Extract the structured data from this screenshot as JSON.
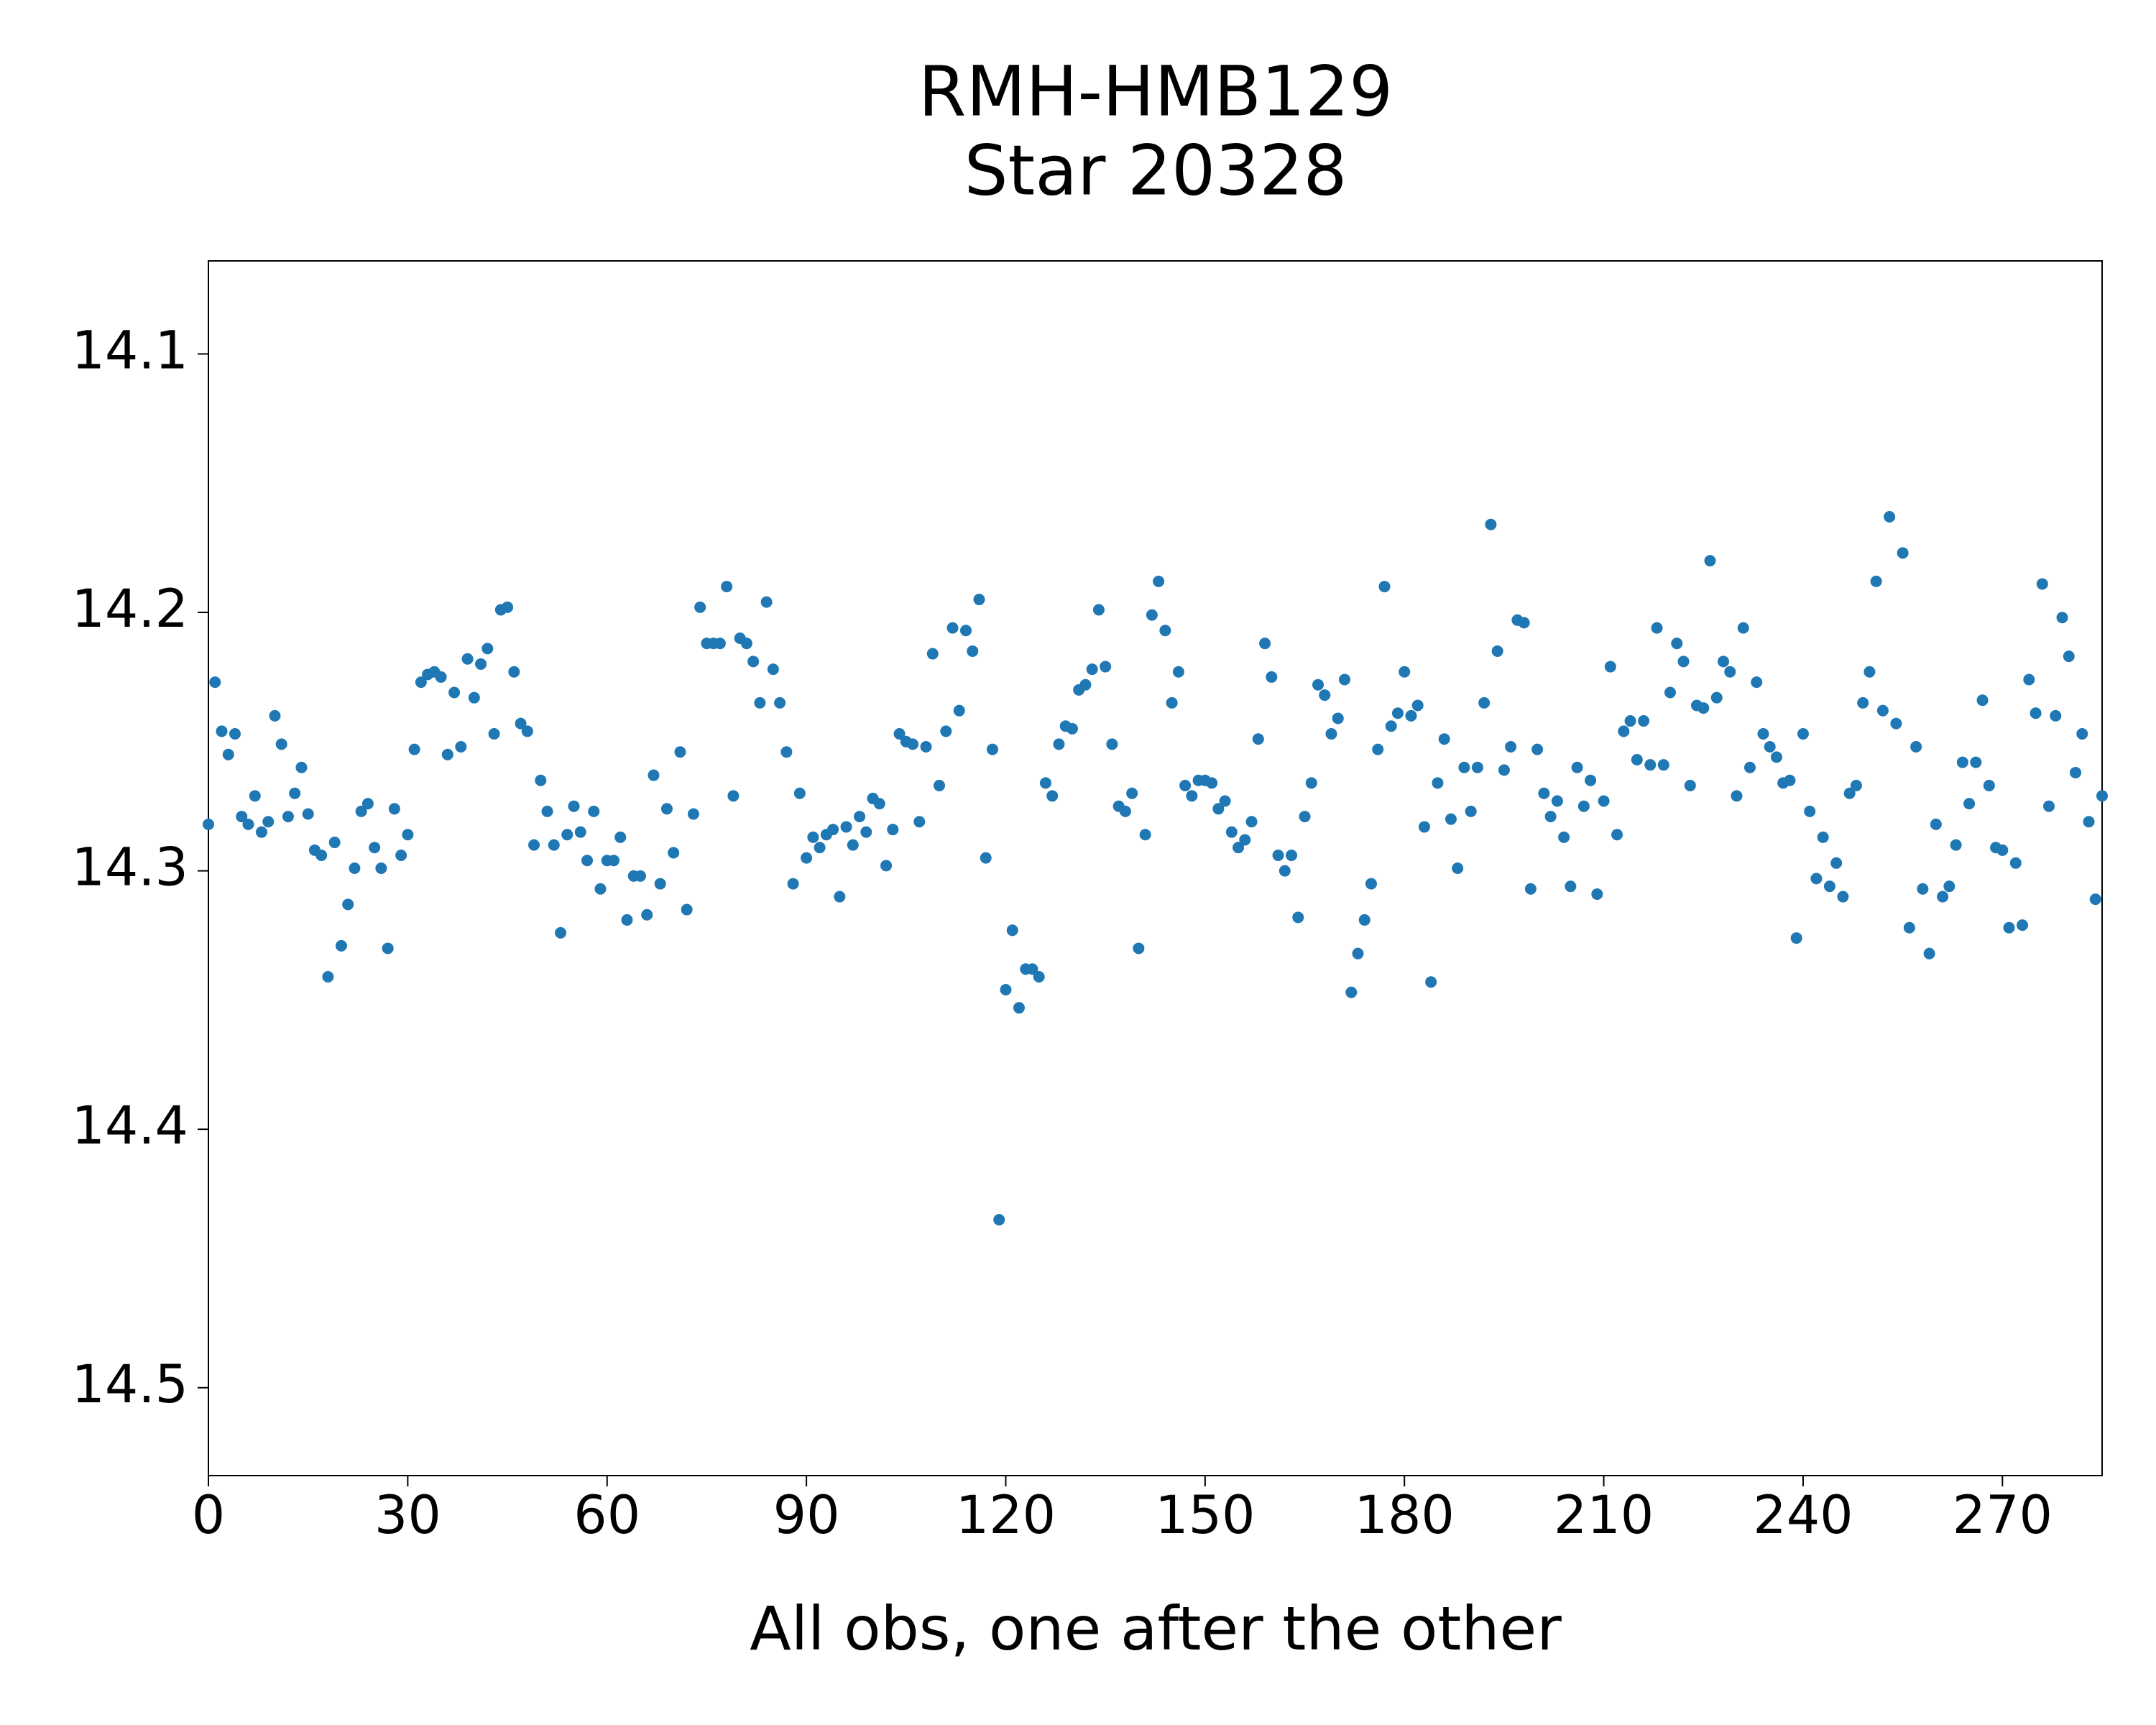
{
  "chart_data": {
    "type": "scatter",
    "title": "RMH-HMB129",
    "subtitle": "Star 20328",
    "x_label": "All obs, one after the other",
    "color": "#1f77b4",
    "grid": false,
    "xlim": [
      0,
      285
    ],
    "xticks": [
      0,
      30,
      60,
      90,
      120,
      150,
      180,
      210,
      240,
      270
    ],
    "ylim": [
      14.534,
      14.064
    ],
    "yticks": [
      14.1,
      14.2,
      14.3,
      14.4,
      14.5
    ],
    "x": [
      0,
      1,
      2,
      3,
      4,
      5,
      6,
      7,
      8,
      9,
      10,
      11,
      12,
      13,
      14,
      15,
      16,
      17,
      18,
      19,
      20,
      21,
      22,
      23,
      24,
      25,
      26,
      27,
      28,
      29,
      30,
      31,
      32,
      33,
      34,
      35,
      36,
      37,
      38,
      39,
      40,
      41,
      42,
      43,
      44,
      45,
      46,
      47,
      48,
      49,
      50,
      51,
      52,
      53,
      54,
      55,
      56,
      57,
      58,
      59,
      60,
      61,
      62,
      63,
      64,
      65,
      66,
      67,
      68,
      69,
      70,
      71,
      72,
      73,
      74,
      75,
      76,
      77,
      78,
      79,
      80,
      81,
      82,
      83,
      84,
      85,
      86,
      87,
      88,
      89,
      90,
      91,
      92,
      93,
      94,
      95,
      96,
      97,
      98,
      99,
      100,
      101,
      102,
      103,
      104,
      105,
      106,
      107,
      108,
      109,
      110,
      111,
      112,
      113,
      114,
      115,
      116,
      117,
      118,
      119,
      120,
      121,
      122,
      123,
      124,
      125,
      126,
      127,
      128,
      129,
      130,
      131,
      132,
      133,
      134,
      135,
      136,
      137,
      138,
      139,
      140,
      141,
      142,
      143,
      144,
      145,
      146,
      147,
      148,
      149,
      150,
      151,
      152,
      153,
      154,
      155,
      156,
      157,
      158,
      159,
      160,
      161,
      162,
      163,
      164,
      165,
      166,
      167,
      168,
      169,
      170,
      171,
      172,
      173,
      174,
      175,
      176,
      177,
      178,
      179,
      180,
      181,
      182,
      183,
      184,
      185,
      186,
      187,
      188,
      189,
      190,
      191,
      192,
      193,
      194,
      195,
      196,
      197,
      198,
      199,
      200,
      201,
      202,
      203,
      204,
      205,
      206,
      207,
      208,
      209,
      210,
      211,
      212,
      213,
      214,
      215,
      216,
      217,
      218,
      219,
      220,
      221,
      222,
      223,
      224,
      225,
      226,
      227,
      228,
      229,
      230,
      231,
      232,
      233,
      234,
      235,
      236,
      237,
      238,
      239,
      240,
      241,
      242,
      243,
      244,
      245,
      246,
      247,
      248,
      249,
      250,
      251,
      252,
      253,
      254,
      255,
      256,
      257,
      258,
      259,
      260,
      261,
      262,
      263,
      264,
      265,
      266,
      267,
      268,
      269,
      270,
      271,
      272,
      273,
      274,
      275,
      276,
      277,
      278,
      279,
      280,
      281,
      282,
      283,
      284,
      285
    ],
    "values": [
      14.282,
      14.227,
      14.246,
      14.255,
      14.247,
      14.279,
      14.282,
      14.271,
      14.285,
      14.281,
      14.24,
      14.251,
      14.279,
      14.27,
      14.26,
      14.278,
      14.292,
      14.294,
      14.341,
      14.289,
      14.329,
      14.313,
      14.299,
      14.277,
      14.274,
      14.291,
      14.299,
      14.33,
      14.276,
      14.294,
      14.286,
      14.253,
      14.227,
      14.224,
      14.223,
      14.225,
      14.255,
      14.231,
      14.252,
      14.218,
      14.233,
      14.22,
      14.214,
      14.247,
      14.199,
      14.198,
      14.223,
      14.243,
      14.246,
      14.29,
      14.265,
      14.277,
      14.29,
      14.324,
      14.286,
      14.275,
      14.285,
      14.296,
      14.277,
      14.307,
      14.296,
      14.296,
      14.287,
      14.319,
      14.302,
      14.302,
      14.317,
      14.263,
      14.305,
      14.276,
      14.293,
      14.254,
      14.315,
      14.278,
      14.198,
      14.212,
      14.212,
      14.212,
      14.19,
      14.271,
      14.21,
      14.212,
      14.219,
      14.235,
      14.196,
      14.222,
      14.235,
      14.254,
      14.305,
      14.27,
      14.295,
      14.287,
      14.291,
      14.286,
      14.284,
      14.31,
      14.283,
      14.29,
      14.279,
      14.285,
      14.272,
      14.274,
      14.298,
      14.284,
      14.247,
      14.25,
      14.251,
      14.281,
      14.252,
      14.216,
      14.267,
      14.246,
      14.206,
      14.238,
      14.207,
      14.215,
      14.195,
      14.295,
      14.253,
      14.435,
      14.346,
      14.323,
      14.353,
      14.338,
      14.338,
      14.341,
      14.266,
      14.271,
      14.251,
      14.244,
      14.245,
      14.23,
      14.228,
      14.222,
      14.199,
      14.221,
      14.251,
      14.275,
      14.277,
      14.27,
      14.33,
      14.286,
      14.201,
      14.188,
      14.207,
      14.235,
      14.223,
      14.267,
      14.271,
      14.265,
      14.265,
      14.266,
      14.276,
      14.273,
      14.285,
      14.291,
      14.288,
      14.281,
      14.249,
      14.212,
      14.225,
      14.294,
      14.3,
      14.294,
      14.318,
      14.279,
      14.266,
      14.228,
      14.232,
      14.247,
      14.241,
      14.226,
      14.347,
      14.332,
      14.319,
      14.305,
      14.253,
      14.19,
      14.244,
      14.239,
      14.223,
      14.24,
      14.236,
      14.283,
      14.343,
      14.266,
      14.249,
      14.28,
      14.299,
      14.26,
      14.277,
      14.26,
      14.235,
      14.166,
      14.215,
      14.261,
      14.252,
      14.203,
      14.204,
      14.307,
      14.253,
      14.27,
      14.279,
      14.273,
      14.287,
      14.306,
      14.26,
      14.275,
      14.265,
      14.309,
      14.273,
      14.221,
      14.286,
      14.246,
      14.242,
      14.257,
      14.242,
      14.259,
      14.206,
      14.259,
      14.231,
      14.212,
      14.219,
      14.267,
      14.236,
      14.237,
      14.18,
      14.233,
      14.219,
      14.223,
      14.271,
      14.206,
      14.26,
      14.227,
      14.247,
      14.252,
      14.256,
      14.266,
      14.265,
      14.326,
      14.247,
      14.277,
      14.303,
      14.287,
      14.306,
      14.297,
      14.31,
      14.27,
      14.267,
      14.235,
      14.223,
      14.188,
      14.238,
      14.163,
      14.243,
      14.177,
      14.322,
      14.252,
      14.307,
      14.332,
      14.282,
      14.31,
      14.306,
      14.29,
      14.258,
      14.274,
      14.258,
      14.234,
      14.267,
      14.291,
      14.292,
      14.322,
      14.297,
      14.321,
      14.226,
      14.239,
      14.189,
      14.275,
      14.24,
      14.202,
      14.217,
      14.262,
      14.247,
      14.281,
      14.311,
      14.271
    ]
  }
}
